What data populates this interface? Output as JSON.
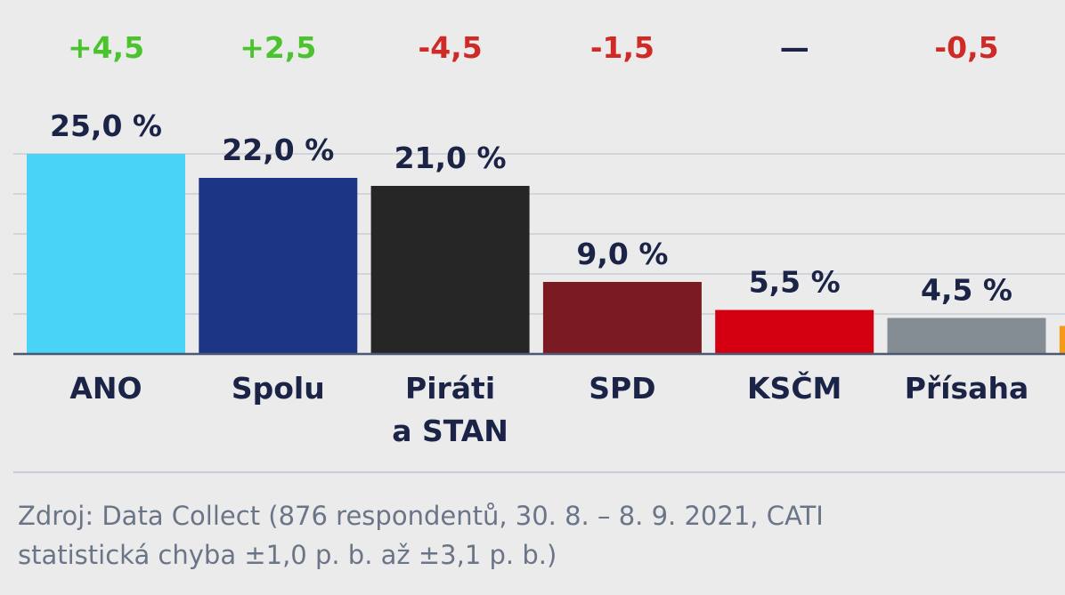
{
  "chart_data": {
    "type": "bar",
    "title": "",
    "xlabel": "",
    "ylabel": "",
    "ylim": [
      0,
      25
    ],
    "grid": true,
    "categories": [
      {
        "lines": [
          "ANO"
        ]
      },
      {
        "lines": [
          "Spolu"
        ]
      },
      {
        "lines": [
          "Piráti",
          "a STAN"
        ]
      },
      {
        "lines": [
          "SPD"
        ]
      },
      {
        "lines": [
          "KSČM"
        ]
      },
      {
        "lines": [
          "Přísaha"
        ]
      },
      {
        "lines": [
          ""
        ]
      }
    ],
    "values": [
      25.0,
      22.0,
      21.0,
      9.0,
      5.5,
      4.5,
      3.5
    ],
    "value_labels": [
      "25,0 %",
      "22,0 %",
      "21,0 %",
      "9,0 %",
      "5,5 %",
      "4,5 %",
      ""
    ],
    "changes": [
      "+4,5",
      "+2,5",
      "-4,5",
      "-1,5",
      "—",
      "-0,5",
      ""
    ],
    "bar_colors": [
      "#49d3f7",
      "#1c3585",
      "#262626",
      "#7c1a22",
      "#d40011",
      "#858d94",
      "#f29a1c"
    ],
    "change_colors": {
      "positive": "#4bc32d",
      "negative": "#cf2a25",
      "neutral": "#1b2447"
    }
  },
  "source": {
    "line1": "Zdroj: Data Collect (876 respondentů, 30. 8. – 8. 9. 2021, CATI",
    "line2": "statistická chyba ±1,0 p. b. až ±3,1 p. b.)"
  },
  "colors": {
    "background": "#ebebec",
    "text_dark": "#1b2447",
    "gridline": "#c9cdd6",
    "axis": "#4c5872",
    "source_text": "#6b7588"
  }
}
